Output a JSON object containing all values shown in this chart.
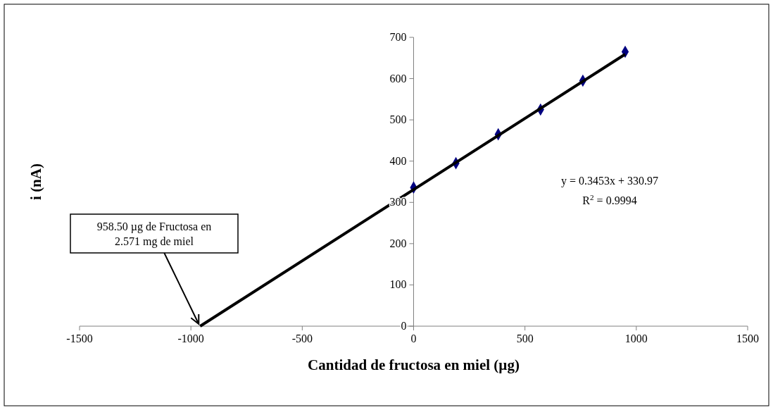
{
  "chart_data": {
    "type": "scatter",
    "xlabel": "Cantidad de fructosa en miel (µg)",
    "ylabel": "i (nA)",
    "xlim": [
      -1500,
      1500
    ],
    "xticks": [
      -1500,
      -1000,
      -500,
      0,
      500,
      1000,
      1500
    ],
    "ylim": [
      0,
      700
    ],
    "yticks": [
      0,
      100,
      200,
      300,
      400,
      500,
      600,
      700
    ],
    "grid": false,
    "marker": "diamond",
    "series": [
      {
        "color": "#000080",
        "x": [
          0,
          190,
          380,
          570,
          760,
          950
        ],
        "values": [
          336,
          395,
          465,
          525,
          595,
          665
        ]
      },
      {
        "type": "line",
        "color": "#000000",
        "marker": "none",
        "line_style": "solid",
        "x": [
          -958.5,
          950
        ],
        "values": [
          0,
          659
        ]
      }
    ],
    "annotations": [
      {
        "text": "958.50 µg de Fructosa en 2.571 mg de miel",
        "x": -958.5,
        "y": 0
      },
      "y = 0.3453x + 330.97",
      "R$^{2}$ = 0.9994"
    ]
  }
}
